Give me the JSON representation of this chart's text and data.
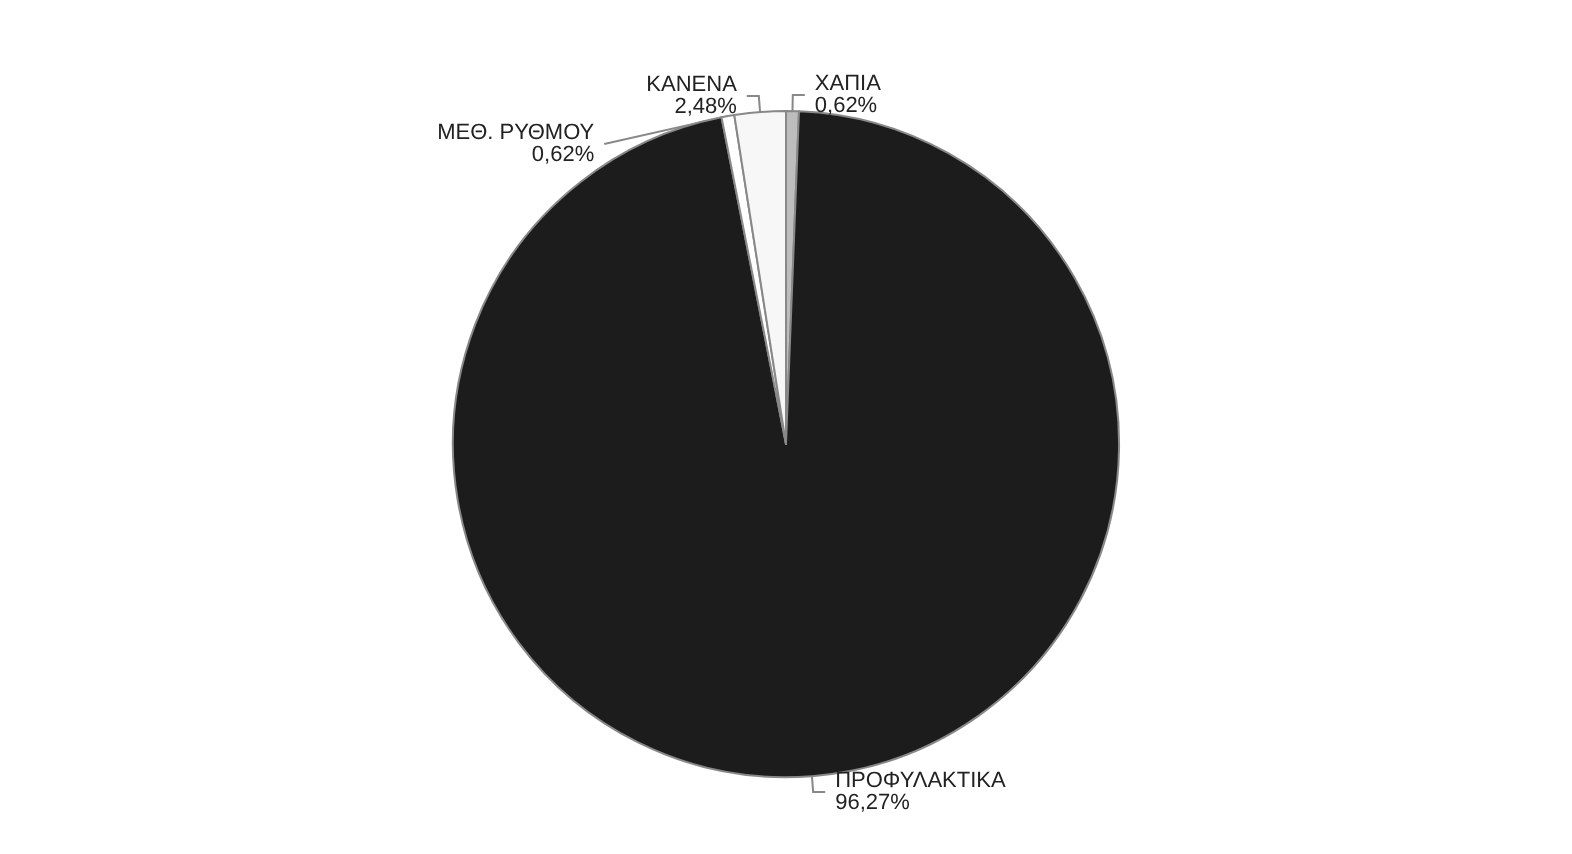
{
  "chart_data": {
    "type": "pie",
    "categories": [
      "ΧΑΠΙΑ",
      "ΠΡΟΦΥΛΑΚΤΙΚΑ",
      "ΜΕΘ. ΡΥΘΜΟΥ",
      "ΚΑΝΕΝΑ"
    ],
    "values": [
      0.62,
      96.27,
      0.62,
      2.48
    ],
    "value_labels": [
      "0,62%",
      "96,27%",
      "0,62%",
      "2,48%"
    ],
    "colors": [
      "#bdbdbd",
      "#1c1c1c",
      "#ffffff",
      "#f7f7f7"
    ]
  }
}
